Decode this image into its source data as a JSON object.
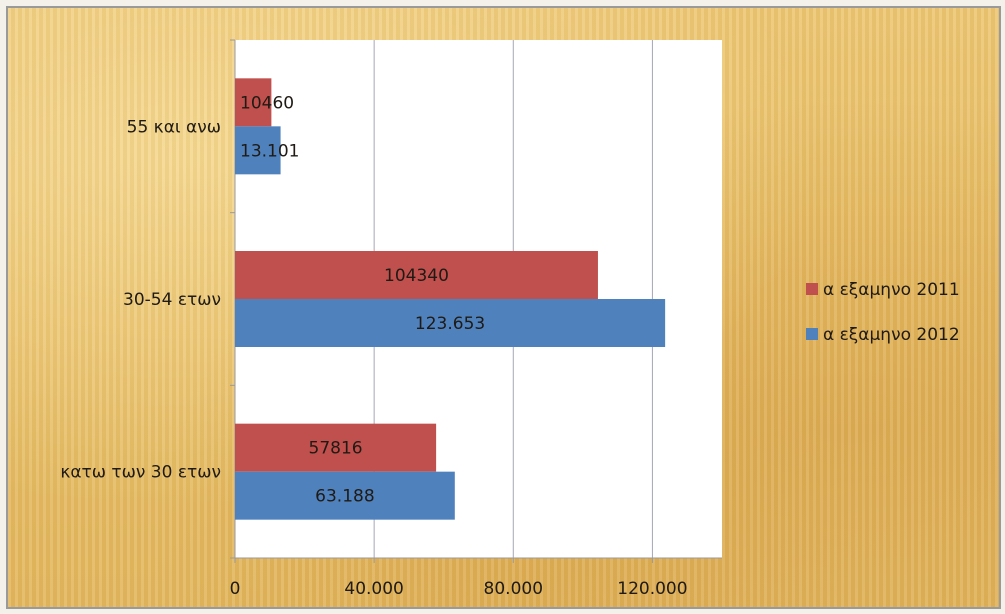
{
  "chart_data": {
    "type": "bar",
    "orientation": "horizontal",
    "categories": [
      "55 και ανω",
      "30-54 ετων",
      "κατω των 30 ετων"
    ],
    "series": [
      {
        "name": "α εξαμηνο 2011",
        "color": "#c0504d",
        "values": [
          10460,
          104340,
          57816
        ],
        "labels": [
          "10460",
          "104340",
          "57816"
        ]
      },
      {
        "name": "α εξαμηνο 2012",
        "color": "#4f81bd",
        "values": [
          13101,
          123653,
          63188
        ],
        "labels": [
          "13.101",
          "123.653",
          "63.188"
        ]
      }
    ],
    "xlim": [
      0,
      140000
    ],
    "xticks": [
      0,
      40000,
      80000,
      120000
    ],
    "xtick_labels": [
      "0",
      "40.000",
      "80.000",
      "120.000"
    ],
    "grid": true,
    "legend_position": "right",
    "title": "",
    "xlabel": "",
    "ylabel": ""
  }
}
